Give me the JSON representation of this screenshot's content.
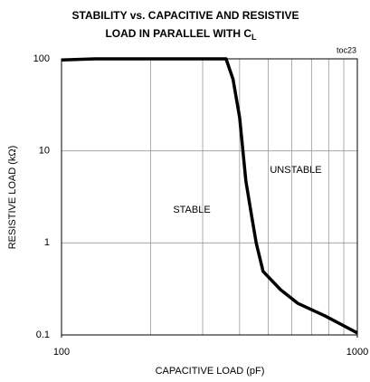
{
  "chart_data": {
    "type": "line",
    "title_lines": [
      "STABILITY vs. CAPACITIVE AND RESISTIVE",
      "LOAD IN PARALLEL WITH C"
    ],
    "title_subscript": "L",
    "x_label": "CAPACITIVE LOAD (pF)",
    "y_label": "RESISTIVE LOAD (kΩ)",
    "annotations": [
      "toc23",
      "UNSTABLE",
      "STABLE"
    ],
    "x_scale": "log",
    "y_scale": "log",
    "xlim": [
      100,
      1000
    ],
    "ylim": [
      0.1,
      100
    ],
    "xticks": [
      100,
      1000
    ],
    "yticks": [
      0.1,
      1,
      10,
      100
    ],
    "xminor_grid": [
      200,
      300,
      400,
      500,
      600,
      700,
      800,
      900
    ],
    "grid": true,
    "series": [
      {
        "color": "#000000",
        "x": [
          100,
          130,
          360,
          380,
          400,
          420,
          440,
          455,
          480,
          550,
          630,
          780,
          1000
        ],
        "values": [
          97,
          100,
          100,
          60,
          23,
          4.7,
          1.9,
          1,
          0.49,
          0.31,
          0.22,
          0.16,
          0.105
        ]
      }
    ]
  }
}
